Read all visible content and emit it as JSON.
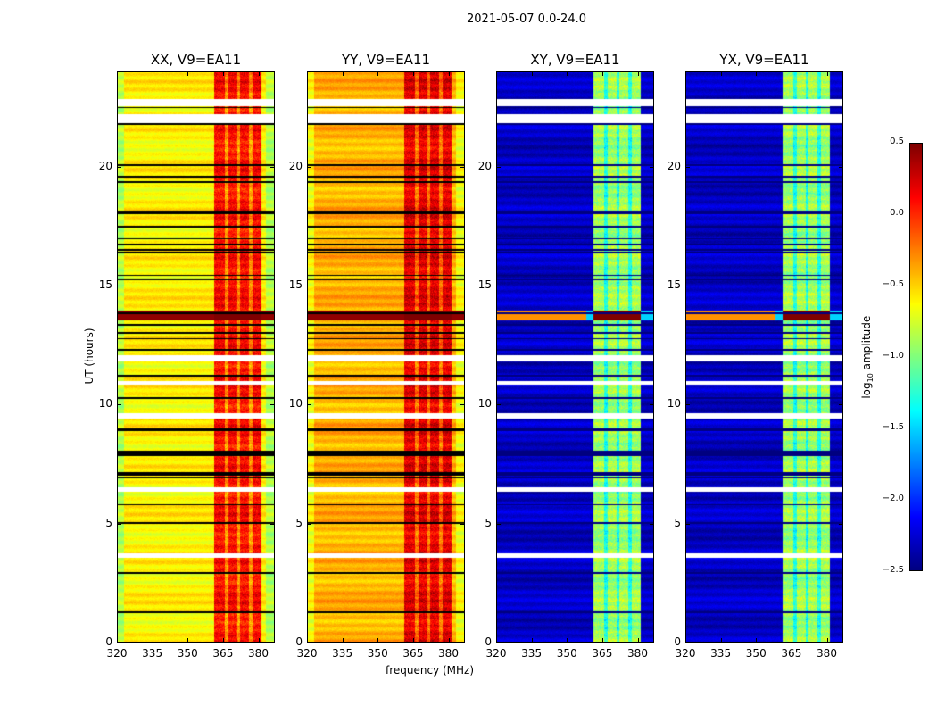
{
  "chart_data": {
    "type": "heatmap",
    "title": "2021-05-07 0.0-24.0",
    "xlabel": "frequency (MHz)",
    "ylabel": "UT (hours)",
    "xlim": [
      320,
      387
    ],
    "ylim": [
      0,
      24
    ],
    "xticks": [
      "320",
      "335",
      "350",
      "365",
      "380"
    ],
    "yticks": [
      "0",
      "5",
      "10",
      "15",
      "20"
    ],
    "panels": [
      {
        "title": "XX, V9=EA11",
        "pol": "XX",
        "base_log_amp": -0.6,
        "band_log_amp": 0.1
      },
      {
        "title": "YY, V9=EA11",
        "pol": "YY",
        "base_log_amp": -0.4,
        "band_log_amp": 0.2
      },
      {
        "title": "XY, V9=EA11",
        "pol": "XY",
        "base_log_amp": -2.3,
        "band_log_amp": -0.9
      },
      {
        "title": "YX, V9=EA11",
        "pol": "YX",
        "base_log_amp": -2.3,
        "band_log_amp": -0.9
      }
    ],
    "band_mhz": [
      361,
      381
    ],
    "flagged_hours": [
      [
        22.55,
        22.85
      ],
      [
        21.85,
        22.2
      ],
      [
        11.85,
        12.1
      ],
      [
        10.85,
        11.0
      ],
      [
        9.45,
        9.65
      ],
      [
        6.35,
        6.55
      ],
      [
        3.6,
        3.75
      ]
    ],
    "high_amp_hours": [
      [
        13.55,
        13.95
      ]
    ],
    "colorbar": {
      "label": "log10 amplitude",
      "min": -2.5,
      "max": 0.5,
      "ticks": [
        "0.5",
        "0.0",
        "−0.5",
        "−1.0",
        "−1.5",
        "−2.0",
        "−2.5"
      ],
      "colormap": "jet"
    }
  }
}
